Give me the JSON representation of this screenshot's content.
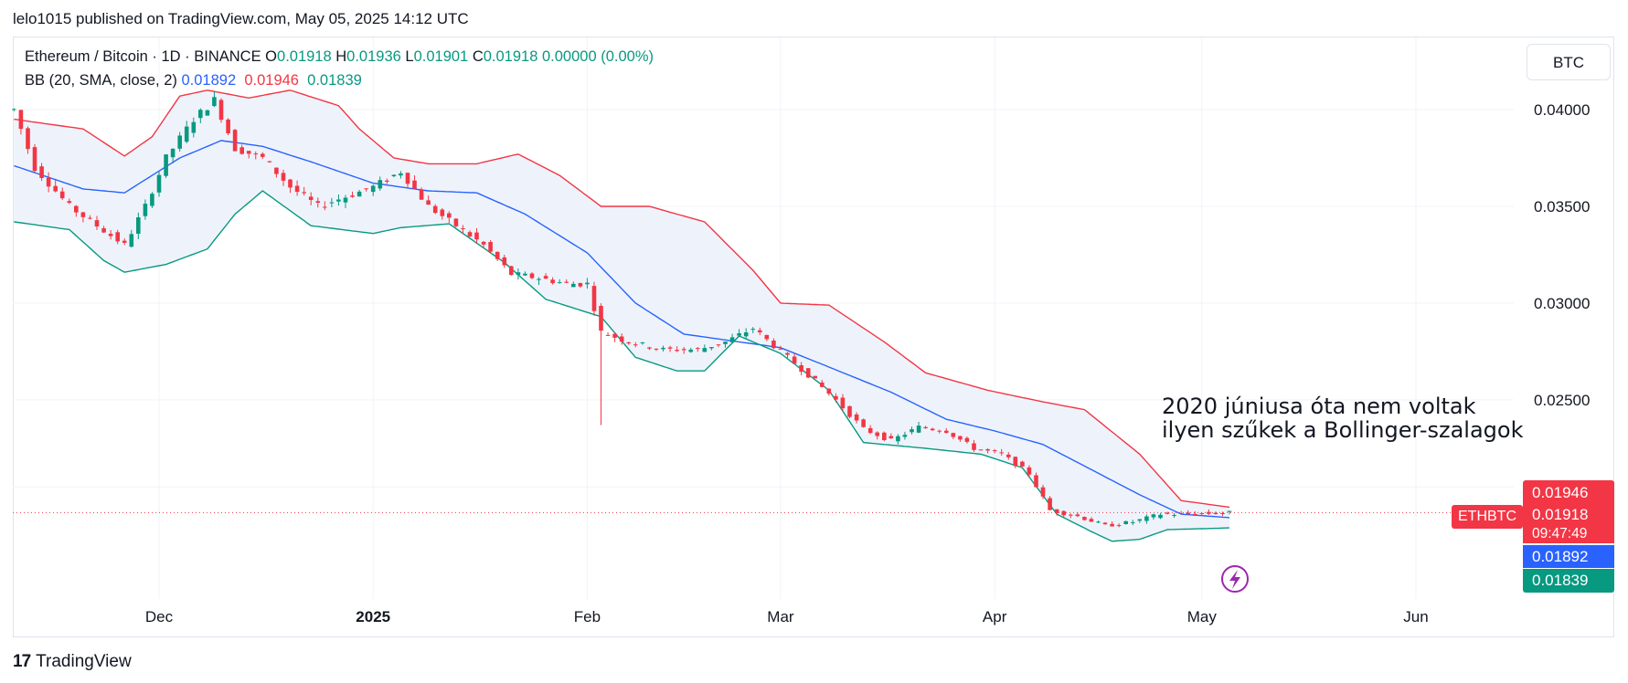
{
  "header": {
    "publish_line": "lelo1015 published on TradingView.com, May 05, 2025 14:12 UTC"
  },
  "legend": {
    "symbol_line": "Ethereum / Bitcoin · 1D · BINANCE",
    "ohlc": [
      {
        "label": "O",
        "value": "0.01918"
      },
      {
        "label": "H",
        "value": "0.01936"
      },
      {
        "label": "L",
        "value": "0.01901"
      },
      {
        "label": "C",
        "value": "0.01918"
      }
    ],
    "change": "0.00000 (0.00%)",
    "indicator_label": "BB (20, SMA, close, 2)",
    "bb_basis": "0.01892",
    "bb_upper": "0.01946",
    "bb_lower": "0.01839"
  },
  "currency_button": "BTC",
  "annotation": {
    "line1": "2020 júniusa óta nem voltak",
    "line2": "ilyen szűkek a Bollinger-szalagok"
  },
  "price_tags": {
    "upper": "0.01946",
    "symbol": "ETHBTC",
    "last": "0.01918",
    "countdown": "09:47:49",
    "basis": "0.01892",
    "lower": "0.01839"
  },
  "footer": {
    "logo_mark": "17",
    "logo_text": "TradingView"
  },
  "colors": {
    "up": "#089981",
    "down": "#f23645",
    "basis": "#2962ff",
    "upper_band": "#f23645",
    "lower_band": "#089981",
    "band_fill": "#eef3fb"
  },
  "icons": {
    "lightning": "lightning-icon"
  },
  "chart_data": {
    "type": "candlestick",
    "title": "Ethereum / Bitcoin · 1D · BINANCE",
    "y_axis": {
      "ticks": [
        0.04,
        0.035,
        0.03,
        0.025
      ],
      "tick_labels": [
        "0.04000",
        "0.03500",
        "0.03000",
        "0.02500"
      ],
      "range": [
        0.0175,
        0.0423
      ]
    },
    "x_axis": {
      "labels": [
        "Dec",
        "2025",
        "Feb",
        "Mar",
        "Apr",
        "May",
        "Jun"
      ],
      "dates": [
        "2024-12-01",
        "2025-01-01",
        "2025-02-01",
        "2025-03-01",
        "2025-04-01",
        "2025-05-01",
        "2025-06-01"
      ]
    },
    "last_price": 0.01918,
    "series": [
      {
        "name": "BB upper",
        "points": [
          [
            "2024-11-10",
            0.0395
          ],
          [
            "2024-11-20",
            0.039
          ],
          [
            "2024-11-26",
            0.0376
          ],
          [
            "2024-11-30",
            0.0386
          ],
          [
            "2024-12-04",
            0.0407
          ],
          [
            "2024-12-08",
            0.041
          ],
          [
            "2024-12-14",
            0.0406
          ],
          [
            "2024-12-20",
            0.041
          ],
          [
            "2024-12-27",
            0.0402
          ],
          [
            "2024-12-30",
            0.039
          ],
          [
            "2025-01-04",
            0.0375
          ],
          [
            "2025-01-09",
            0.0372
          ],
          [
            "2025-01-16",
            0.0372
          ],
          [
            "2025-01-22",
            0.0377
          ],
          [
            "2025-01-28",
            0.0366
          ],
          [
            "2025-02-03",
            0.035
          ],
          [
            "2025-02-10",
            0.035
          ],
          [
            "2025-02-18",
            0.0342
          ],
          [
            "2025-02-25",
            0.0317
          ],
          [
            "2025-03-01",
            0.03
          ],
          [
            "2025-03-08",
            0.0299
          ],
          [
            "2025-03-16",
            0.028
          ],
          [
            "2025-03-22",
            0.0264
          ],
          [
            "2025-03-31",
            0.0255
          ],
          [
            "2025-04-08",
            0.0249
          ],
          [
            "2025-04-14",
            0.0245
          ],
          [
            "2025-04-22",
            0.0222
          ],
          [
            "2025-04-28",
            0.0198
          ],
          [
            "2025-05-05",
            0.01946
          ]
        ]
      },
      {
        "name": "BB basis",
        "points": [
          [
            "2024-11-10",
            0.0371
          ],
          [
            "2024-11-20",
            0.0359
          ],
          [
            "2024-11-26",
            0.0357
          ],
          [
            "2024-12-04",
            0.0375
          ],
          [
            "2024-12-10",
            0.0384
          ],
          [
            "2024-12-16",
            0.0381
          ],
          [
            "2024-12-23",
            0.0373
          ],
          [
            "2025-01-01",
            0.0362
          ],
          [
            "2025-01-09",
            0.0358
          ],
          [
            "2025-01-16",
            0.0357
          ],
          [
            "2025-01-23",
            0.0346
          ],
          [
            "2025-02-01",
            0.0326
          ],
          [
            "2025-02-08",
            0.03
          ],
          [
            "2025-02-15",
            0.0284
          ],
          [
            "2025-02-23",
            0.028
          ],
          [
            "2025-03-01",
            0.0277
          ],
          [
            "2025-03-08",
            0.0267
          ],
          [
            "2025-03-17",
            0.0254
          ],
          [
            "2025-03-25",
            0.024
          ],
          [
            "2025-04-01",
            0.0234
          ],
          [
            "2025-04-08",
            0.0227
          ],
          [
            "2025-04-15",
            0.0214
          ],
          [
            "2025-04-22",
            0.0201
          ],
          [
            "2025-04-28",
            0.0191
          ],
          [
            "2025-05-05",
            0.01892
          ]
        ]
      },
      {
        "name": "BB lower",
        "points": [
          [
            "2024-11-10",
            0.0342
          ],
          [
            "2024-11-18",
            0.0338
          ],
          [
            "2024-11-23",
            0.0322
          ],
          [
            "2024-11-26",
            0.0316
          ],
          [
            "2024-12-02",
            0.032
          ],
          [
            "2024-12-08",
            0.0328
          ],
          [
            "2024-12-12",
            0.0346
          ],
          [
            "2024-12-16",
            0.0358
          ],
          [
            "2024-12-23",
            0.034
          ],
          [
            "2025-01-01",
            0.0336
          ],
          [
            "2025-01-05",
            0.0339
          ],
          [
            "2025-01-12",
            0.0341
          ],
          [
            "2025-01-20",
            0.0321
          ],
          [
            "2025-01-26",
            0.0302
          ],
          [
            "2025-02-03",
            0.0293
          ],
          [
            "2025-02-08",
            0.0272
          ],
          [
            "2025-02-14",
            0.0265
          ],
          [
            "2025-02-18",
            0.0265
          ],
          [
            "2025-02-23",
            0.0283
          ],
          [
            "2025-03-01",
            0.0274
          ],
          [
            "2025-03-08",
            0.0255
          ],
          [
            "2025-03-13",
            0.0228
          ],
          [
            "2025-03-22",
            0.0225
          ],
          [
            "2025-03-30",
            0.0222
          ],
          [
            "2025-04-05",
            0.0215
          ],
          [
            "2025-04-10",
            0.0191
          ],
          [
            "2025-04-15",
            0.0182
          ],
          [
            "2025-04-18",
            0.0177
          ],
          [
            "2025-04-22",
            0.0178
          ],
          [
            "2025-04-26",
            0.0183
          ],
          [
            "2025-05-05",
            0.01839
          ]
        ]
      },
      {
        "name": "ETHBTC close",
        "points": [
          [
            "2024-11-10",
            0.04
          ],
          [
            "2024-11-13",
            0.037
          ],
          [
            "2024-11-18",
            0.035
          ],
          [
            "2024-11-22",
            0.034
          ],
          [
            "2024-11-26",
            0.033
          ],
          [
            "2024-11-29",
            0.035
          ],
          [
            "2024-12-02",
            0.0375
          ],
          [
            "2024-12-06",
            0.0395
          ],
          [
            "2024-12-09",
            0.0405
          ],
          [
            "2024-12-12",
            0.038
          ],
          [
            "2024-12-16",
            0.0375
          ],
          [
            "2024-12-20",
            0.036
          ],
          [
            "2024-12-24",
            0.035
          ],
          [
            "2024-12-28",
            0.0355
          ],
          [
            "2025-01-01",
            0.036
          ],
          [
            "2025-01-05",
            0.0368
          ],
          [
            "2025-01-09",
            0.035
          ],
          [
            "2025-01-13",
            0.034
          ],
          [
            "2025-01-17",
            0.033
          ],
          [
            "2025-01-21",
            0.0315
          ],
          [
            "2025-01-25",
            0.0313
          ],
          [
            "2025-01-29",
            0.031
          ],
          [
            "2025-02-01",
            0.031
          ],
          [
            "2025-02-03",
            0.0285
          ],
          [
            "2025-02-07",
            0.028
          ],
          [
            "2025-02-12",
            0.0276
          ],
          [
            "2025-02-17",
            0.0276
          ],
          [
            "2025-02-21",
            0.028
          ],
          [
            "2025-02-25",
            0.0287
          ],
          [
            "2025-03-01",
            0.0275
          ],
          [
            "2025-03-05",
            0.0263
          ],
          [
            "2025-03-09",
            0.025
          ],
          [
            "2025-03-13",
            0.0235
          ],
          [
            "2025-03-17",
            0.0229
          ],
          [
            "2025-03-21",
            0.0236
          ],
          [
            "2025-03-25",
            0.0234
          ],
          [
            "2025-03-29",
            0.0225
          ],
          [
            "2025-04-02",
            0.0222
          ],
          [
            "2025-04-06",
            0.0212
          ],
          [
            "2025-04-09",
            0.0193
          ],
          [
            "2025-04-13",
            0.019
          ],
          [
            "2025-04-17",
            0.0185
          ],
          [
            "2025-04-21",
            0.0187
          ],
          [
            "2025-04-25",
            0.0191
          ],
          [
            "2025-04-29",
            0.0191
          ],
          [
            "2025-05-05",
            0.01918
          ]
        ]
      }
    ]
  }
}
